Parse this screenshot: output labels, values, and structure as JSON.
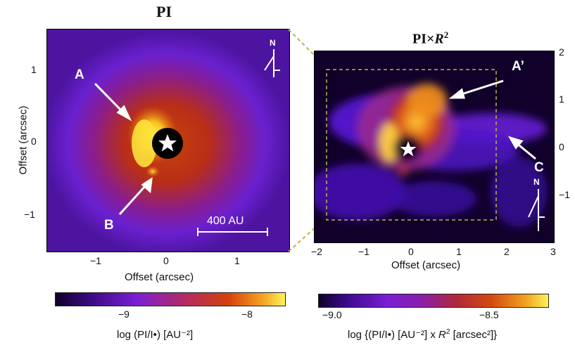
{
  "left_panel": {
    "title": "PI",
    "xlabel": "Offset (arcsec)",
    "ylabel": "Offset (arcsec)",
    "xticks": [
      "−1",
      "0",
      "1"
    ],
    "yticks": [
      "1",
      "0",
      "−1"
    ],
    "compass": "N",
    "scalebar": "400 AU",
    "markers": [
      "A",
      "B"
    ],
    "colorbar": {
      "ticks": [
        "−9",
        "−8"
      ],
      "label": "log (PI/I•) [AU⁻²]"
    }
  },
  "right_panel": {
    "title_main": "PI×",
    "title_var": "R",
    "title_sup": "2",
    "xlabel": "Offset (arcsec)",
    "xticks": [
      "−2",
      "−1",
      "0",
      "1",
      "2",
      "3"
    ],
    "yticks": [
      "2",
      "1",
      "0",
      "−1"
    ],
    "compass": "N",
    "markers": [
      "A’",
      "C"
    ],
    "colorbar": {
      "ticks": [
        "−9.0",
        "−8.5"
      ],
      "label_pre": "log {(PI/I•) [AU⁻²] x ",
      "label_var": "R",
      "label_sup": "2",
      "label_post": " [arcsec²]}"
    }
  },
  "colors": {
    "background": "#3c0a6e",
    "low": "#160032",
    "mid": "#7a1fd6",
    "high": "#d43a10",
    "peak": "#ffe23a",
    "dashed_box": "#b8b448"
  }
}
